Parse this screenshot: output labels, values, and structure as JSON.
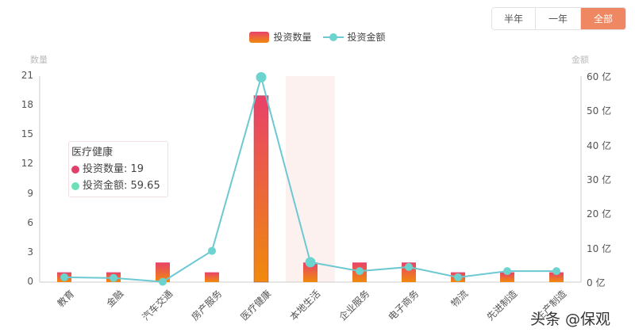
{
  "range_selector": {
    "options": [
      {
        "label": "半年",
        "active": false
      },
      {
        "label": "一年",
        "active": false
      },
      {
        "label": "全部",
        "active": true
      }
    ],
    "active_color": "#f08763"
  },
  "legend": {
    "bar_label": "投资数量",
    "line_label": "投资金额"
  },
  "axes": {
    "left_name": "数量",
    "right_name": "金额",
    "left_ticks": [
      "0",
      "3",
      "6",
      "9",
      "12",
      "15",
      "18",
      "21"
    ],
    "right_ticks": [
      "0 亿",
      "10 亿",
      "20 亿",
      "30 亿",
      "40 亿",
      "50 亿",
      "60 亿"
    ]
  },
  "tooltip": {
    "title": "医疗健康",
    "rows": [
      {
        "label": "投资数量: 19",
        "color": "#e0406a"
      },
      {
        "label": "投资金额: 59.65",
        "color": "#6ee0b8"
      }
    ]
  },
  "watermark": "头条 @保观",
  "colors": {
    "bar_top": "#e8416a",
    "bar_bottom": "#f08a0c",
    "line": "#6cc8d2",
    "marker": "#6dd3cf",
    "highlight": "#fdf1ef",
    "axis": "#cccccc"
  },
  "chart_data": {
    "type": "bar",
    "title": "",
    "categories": [
      "教育",
      "金融",
      "汽车交通",
      "房产服务",
      "医疗健康",
      "本地生活",
      "企业服务",
      "电子商务",
      "物流",
      "先进制造",
      "生产制造"
    ],
    "series": [
      {
        "name": "投资数量",
        "type": "bar",
        "axis": "left",
        "values": [
          1,
          1,
          2,
          1,
          19,
          2,
          2,
          2,
          1,
          1,
          1
        ]
      },
      {
        "name": "投资金额",
        "type": "line",
        "axis": "right",
        "unit": "亿",
        "values": [
          1.4,
          1.2,
          0.1,
          9.1,
          59.65,
          5.8,
          3.2,
          4.4,
          1.4,
          3.2,
          3.2
        ]
      }
    ],
    "xlabel": "",
    "ylabel": "数量",
    "ylabel_right": "金额",
    "ylim": [
      0,
      21
    ],
    "ylim_right": [
      0,
      60
    ],
    "yticks": [
      0,
      3,
      6,
      9,
      12,
      15,
      18,
      21
    ],
    "yticks_right": [
      0,
      10,
      20,
      30,
      40,
      50,
      60
    ],
    "grid": false,
    "legend_position": "top",
    "highlighted_category": "本地生活",
    "tooltip_category": "医疗健康"
  }
}
